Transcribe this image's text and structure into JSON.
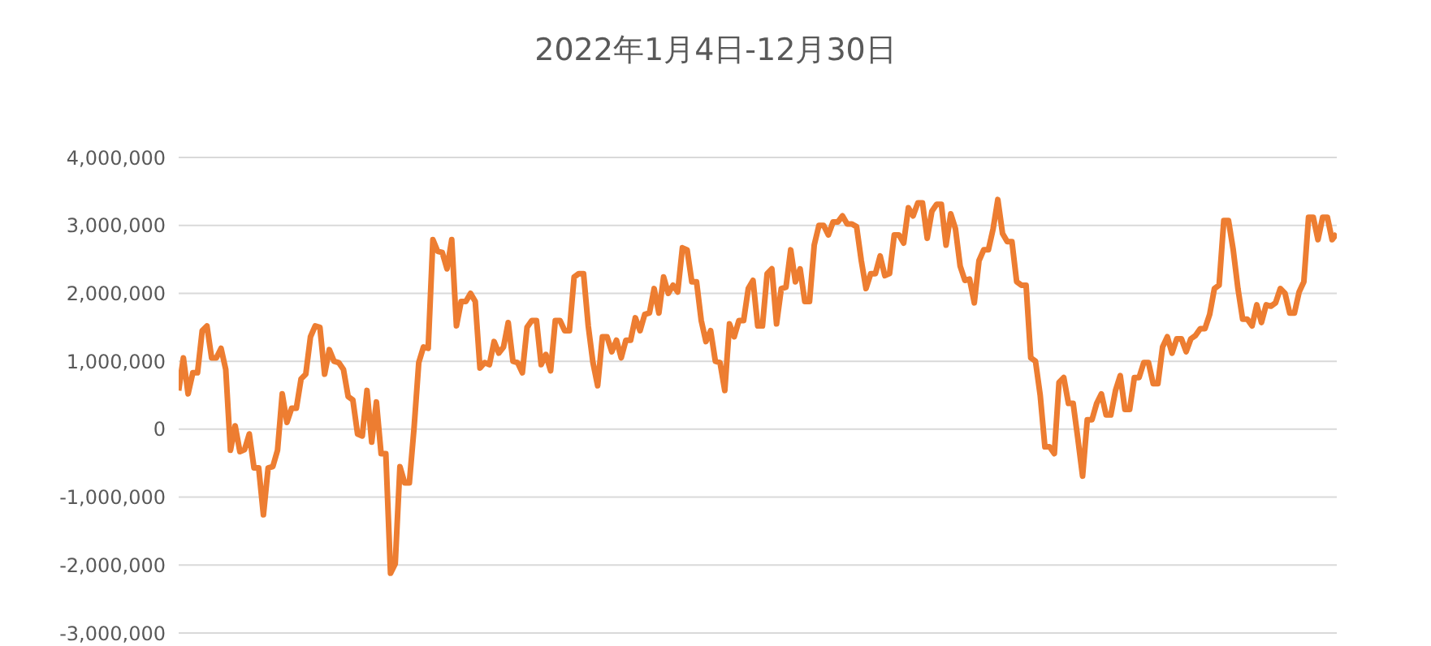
{
  "chart_data": {
    "type": "line",
    "title": "2022年1月4日-12月30日",
    "tick_labels": "y",
    "grid": "y",
    "legend": false,
    "line_style": "solid",
    "ylim": [
      -3000000,
      4000000
    ],
    "yticks": [
      {
        "value": -3000000,
        "label": "-3,000,000"
      },
      {
        "value": -2000000,
        "label": "-2,000,000"
      },
      {
        "value": -1000000,
        "label": "-1,000,000"
      },
      0,
      {
        "value": 1000000,
        "label": "1,000,000"
      },
      {
        "value": 2000000,
        "label": "2,000,000"
      },
      {
        "value": 3000000,
        "label": "3,000,000"
      },
      {
        "value": 4000000,
        "label": "4,000,000"
      }
    ],
    "categories": [
      null,
      null,
      null,
      null,
      null,
      null,
      null,
      null,
      null,
      null,
      null,
      null,
      null,
      null,
      null,
      null,
      null,
      null,
      null,
      null,
      null,
      null,
      null,
      null,
      null,
      null,
      null,
      null,
      null,
      null,
      null,
      null,
      null,
      null,
      null,
      null,
      null,
      null,
      null,
      null,
      null,
      null,
      null,
      null,
      null,
      null,
      null,
      null,
      null,
      null,
      null,
      null,
      null,
      null,
      null,
      null,
      null,
      null,
      null,
      null,
      null,
      null,
      null,
      null,
      null,
      null,
      null,
      null,
      null,
      null,
      null,
      null,
      null,
      null,
      null,
      null,
      null,
      null,
      null,
      null,
      null,
      null,
      null,
      null,
      null,
      null,
      null,
      null,
      null,
      null,
      null,
      null,
      null,
      null,
      null,
      null,
      null,
      null,
      null,
      null,
      null,
      null,
      null,
      null,
      null,
      null,
      null,
      null,
      null,
      null,
      null,
      null,
      null,
      null,
      null,
      null,
      null,
      null,
      null,
      null,
      null,
      null,
      null,
      null,
      null,
      null,
      null,
      null,
      null,
      null,
      null,
      null,
      null,
      null,
      null,
      null,
      null,
      null,
      null,
      null,
      null,
      null,
      null,
      null,
      null,
      null,
      null,
      null,
      null,
      null,
      null,
      null,
      null,
      null,
      null,
      null,
      null,
      null,
      null,
      null,
      null,
      null,
      null,
      null,
      null,
      null,
      null,
      null,
      null,
      null,
      null,
      null,
      null,
      null,
      null,
      null,
      null,
      null,
      null,
      null,
      null,
      null,
      null,
      null,
      null,
      null,
      null,
      null,
      null,
      null,
      null,
      null,
      null,
      null,
      null,
      null,
      null,
      null,
      null,
      null,
      null,
      null,
      null,
      null,
      null,
      null,
      null,
      null,
      null,
      null,
      null,
      null,
      null,
      null,
      null,
      null,
      null,
      null,
      null,
      null,
      null,
      null,
      null,
      null,
      null,
      null,
      null,
      null,
      null,
      null,
      null,
      null,
      null,
      null,
      null,
      null,
      null,
      null,
      null,
      null,
      null,
      null,
      null,
      null,
      null,
      null,
      null
    ],
    "series": [
      {
        "color": "#ed7d31",
        "values": [
          570000,
          1050000,
          520000,
          830000,
          830000,
          1450000,
          1520000,
          1050000,
          1050000,
          1190000,
          880000,
          -310000,
          50000,
          -330000,
          -300000,
          -70000,
          -570000,
          -570000,
          -1260000,
          -570000,
          -550000,
          -310000,
          520000,
          100000,
          310000,
          310000,
          740000,
          810000,
          1360000,
          1520000,
          1500000,
          810000,
          1170000,
          1000000,
          980000,
          880000,
          480000,
          430000,
          -70000,
          -100000,
          570000,
          -190000,
          400000,
          -360000,
          -360000,
          -2120000,
          -1980000,
          -550000,
          -790000,
          -790000,
          20000,
          980000,
          1210000,
          1190000,
          2790000,
          2620000,
          2600000,
          2360000,
          2790000,
          1520000,
          1880000,
          1880000,
          2000000,
          1880000,
          900000,
          980000,
          950000,
          1290000,
          1120000,
          1210000,
          1570000,
          1000000,
          980000,
          830000,
          1500000,
          1600000,
          1600000,
          950000,
          1100000,
          860000,
          1600000,
          1600000,
          1450000,
          1450000,
          2240000,
          2290000,
          2290000,
          1520000,
          980000,
          640000,
          1360000,
          1360000,
          1140000,
          1310000,
          1050000,
          1310000,
          1310000,
          1640000,
          1450000,
          1690000,
          1710000,
          2070000,
          1710000,
          2240000,
          2000000,
          2120000,
          2020000,
          2670000,
          2640000,
          2170000,
          2170000,
          1600000,
          1290000,
          1450000,
          1000000,
          980000,
          570000,
          1550000,
          1360000,
          1600000,
          1600000,
          2070000,
          2190000,
          1520000,
          1520000,
          2290000,
          2360000,
          1550000,
          2070000,
          2090000,
          2640000,
          2170000,
          2360000,
          1880000,
          1880000,
          2710000,
          3000000,
          3000000,
          2860000,
          3050000,
          3050000,
          3140000,
          3020000,
          3020000,
          2980000,
          2480000,
          2070000,
          2290000,
          2290000,
          2550000,
          2260000,
          2290000,
          2860000,
          2860000,
          2740000,
          3260000,
          3140000,
          3330000,
          3330000,
          2810000,
          3210000,
          3310000,
          3310000,
          2710000,
          3170000,
          2950000,
          2400000,
          2190000,
          2210000,
          1860000,
          2480000,
          2640000,
          2640000,
          2950000,
          3380000,
          2880000,
          2760000,
          2760000,
          2170000,
          2120000,
          2120000,
          1050000,
          1000000,
          500000,
          -260000,
          -260000,
          -360000,
          690000,
          760000,
          380000,
          380000,
          -140000,
          -690000,
          140000,
          140000,
          380000,
          520000,
          210000,
          210000,
          570000,
          790000,
          290000,
          290000,
          760000,
          760000,
          980000,
          980000,
          670000,
          670000,
          1210000,
          1360000,
          1120000,
          1330000,
          1330000,
          1140000,
          1330000,
          1380000,
          1480000,
          1480000,
          1690000,
          2070000,
          2120000,
          3070000,
          3070000,
          2640000,
          2070000,
          1620000,
          1620000,
          1520000,
          1830000,
          1570000,
          1830000,
          1810000,
          1860000,
          2070000,
          2000000,
          1710000,
          1710000,
          2020000,
          2170000,
          3120000,
          3120000,
          2790000,
          3120000,
          3120000,
          2790000,
          2880000
        ]
      }
    ]
  }
}
